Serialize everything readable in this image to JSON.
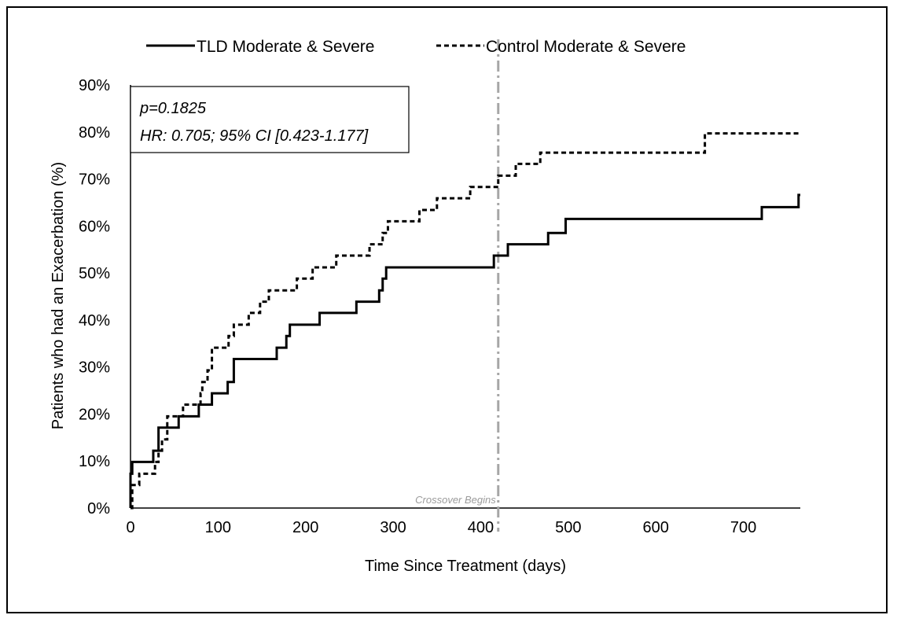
{
  "chart_data": {
    "type": "line",
    "step": true,
    "title": "",
    "xlabel": "Time Since Treatment (days)",
    "ylabel": "Patients who had an Exacerbation (%)",
    "xlim": [
      0,
      765
    ],
    "ylim": [
      0,
      90
    ],
    "x_ticks": [
      0,
      100,
      200,
      300,
      400,
      500,
      600,
      700
    ],
    "x_tick_labels": [
      "0",
      "100",
      "200",
      "300",
      "400",
      "500",
      "600",
      "700"
    ],
    "y_ticks": [
      0,
      10,
      20,
      30,
      40,
      50,
      60,
      70,
      80,
      90
    ],
    "y_tick_labels": [
      "0%",
      "10%",
      "20%",
      "30%",
      "40%",
      "50%",
      "60%",
      "70%",
      "80%",
      "90%"
    ],
    "grid": false,
    "legend_position": "top",
    "series": [
      {
        "name": "TLD Moderate & Severe",
        "line_style": "solid",
        "color": "#000000",
        "x": [
          0,
          0,
          2,
          26,
          32,
          40,
          55,
          78,
          93,
          111,
          118,
          167,
          178,
          182,
          216,
          258,
          284,
          288,
          292,
          415,
          431,
          477,
          497,
          721,
          763,
          765
        ],
        "y": [
          0,
          7.3,
          9.8,
          12.2,
          17.1,
          17.1,
          19.5,
          22.0,
          24.4,
          26.8,
          31.7,
          34.1,
          36.6,
          39.0,
          41.5,
          43.9,
          46.3,
          48.8,
          51.2,
          53.7,
          56.1,
          58.5,
          61.5,
          64.0,
          66.6,
          66.6
        ]
      },
      {
        "name": "Control Moderate & Severe",
        "line_style": "dashed",
        "color": "#000000",
        "x": [
          0,
          2,
          10,
          28,
          32,
          36,
          42,
          60,
          80,
          82,
          88,
          93,
          112,
          118,
          135,
          148,
          158,
          190,
          208,
          235,
          273,
          288,
          294,
          330,
          350,
          388,
          420,
          440,
          468,
          509,
          656,
          765
        ],
        "y": [
          0,
          4.9,
          7.3,
          9.8,
          12.2,
          14.6,
          19.5,
          22.0,
          24.4,
          26.8,
          29.3,
          34.1,
          36.6,
          39.0,
          41.5,
          43.9,
          46.3,
          48.8,
          51.2,
          53.7,
          56.1,
          58.5,
          61.0,
          63.4,
          65.9,
          68.3,
          70.7,
          73.2,
          75.6,
          75.6,
          79.7,
          79.7
        ]
      }
    ],
    "annotations": {
      "stats_line1": "p=0.1825",
      "stats_line2": "HR: 0.705; 95% CI [0.423-1.177]",
      "crossover_x": 420,
      "crossover_label": "Crossover Begins",
      "crossover_color": "#a6a6a6"
    }
  }
}
